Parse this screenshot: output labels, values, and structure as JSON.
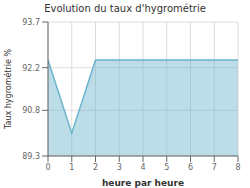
{
  "chart_data": {
    "type": "area",
    "title": "Evolution du taux d'hygrométrie",
    "xlabel": "heure par heure",
    "ylabel": "Taux hygrométrie %",
    "x": [
      0,
      1,
      2,
      3,
      4,
      5,
      6,
      7,
      8
    ],
    "values": [
      92.45,
      90.05,
      92.45,
      92.45,
      92.45,
      92.45,
      92.45,
      92.45,
      92.45
    ],
    "xlim": [
      0,
      8
    ],
    "ylim": [
      89.3,
      93.7
    ],
    "xticks": [
      0,
      1,
      2,
      3,
      4,
      5,
      6,
      7,
      8
    ],
    "yticks": [
      89.3,
      90.8,
      92.2,
      93.7
    ],
    "color": "#6ab4cc",
    "grid": true
  }
}
